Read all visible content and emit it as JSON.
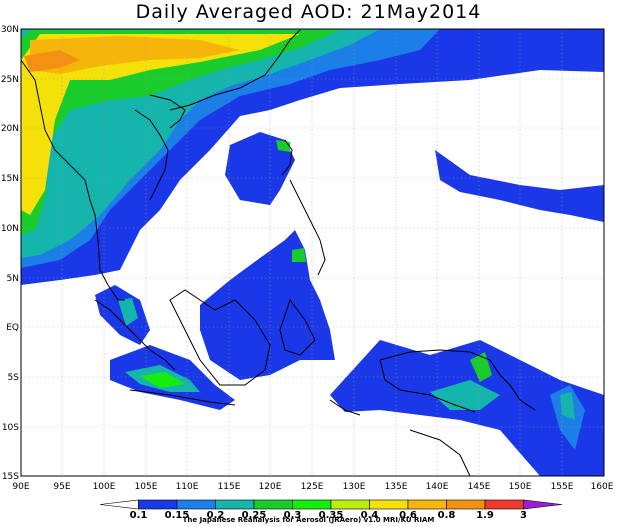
{
  "map": {
    "title": "Daily Averaged AOD: 21May2014",
    "lon_labels": [
      "90E",
      "95E",
      "100E",
      "105E",
      "110E",
      "115E",
      "120E",
      "125E",
      "130E",
      "135E",
      "140E",
      "145E",
      "150E",
      "155E",
      "160E"
    ],
    "lat_labels": [
      "30N",
      "25N",
      "20N",
      "15N",
      "10N",
      "5N",
      "EQ",
      "5S",
      "10S",
      "15S"
    ],
    "colorbar": {
      "levels": [
        "0.1",
        "0.15",
        "0.2",
        "0.25",
        "0.3",
        "0.35",
        "0.4",
        "0.6",
        "0.8",
        "1.9",
        "3"
      ],
      "colors": [
        "#ffffff",
        "#1a37e8",
        "#1c7fe8",
        "#15b4ac",
        "#19cc2c",
        "#14ee0c",
        "#bbee0f",
        "#f5e10a",
        "#f5b50a",
        "#f59112",
        "#ee3a2b",
        "#9e1cd6"
      ]
    },
    "credit": "The Japanese Reanalysis for Aerosol (JRAero) v1.0 MRI/KU RIAM"
  }
}
